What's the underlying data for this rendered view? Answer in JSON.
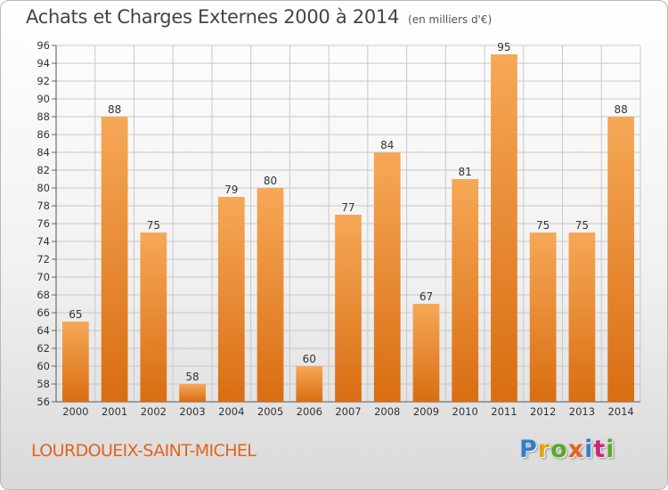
{
  "header": {
    "title": "Achats et Charges Externes 2000 à 2014",
    "unit": "(en milliers d'€)"
  },
  "footer": {
    "location": "LOURDOUEIX-SAINT-MICHEL",
    "logo_text": "Proxiti",
    "logo_colors": [
      "#2f7fc8",
      "#e3a21a",
      "#58a82c",
      "#e0641e",
      "#2f7fc8",
      "#c8287a",
      "#58a82c"
    ]
  },
  "colors": {
    "bar_top": "#f6a857",
    "bar_bottom": "#d96d12",
    "grid": "#c8c8c8",
    "axis_text": "#333333",
    "location_text": "#e0641e"
  },
  "chart_data": {
    "type": "bar",
    "title": "Achats et Charges Externes 2000 à 2014",
    "subtitle": "(en milliers d'€)",
    "xlabel": "",
    "ylabel": "",
    "categories": [
      "2000",
      "2001",
      "2002",
      "2003",
      "2004",
      "2005",
      "2006",
      "2007",
      "2008",
      "2009",
      "2010",
      "2011",
      "2012",
      "2013",
      "2014"
    ],
    "values": [
      65,
      88,
      75,
      58,
      79,
      80,
      60,
      77,
      84,
      67,
      81,
      95,
      75,
      75,
      88
    ],
    "ylim": [
      56,
      96
    ],
    "yticks": [
      56,
      58,
      60,
      62,
      64,
      66,
      68,
      70,
      72,
      74,
      76,
      78,
      80,
      82,
      84,
      86,
      88,
      90,
      92,
      94,
      96
    ],
    "grid": true,
    "data_labels": true,
    "legend": "none"
  }
}
